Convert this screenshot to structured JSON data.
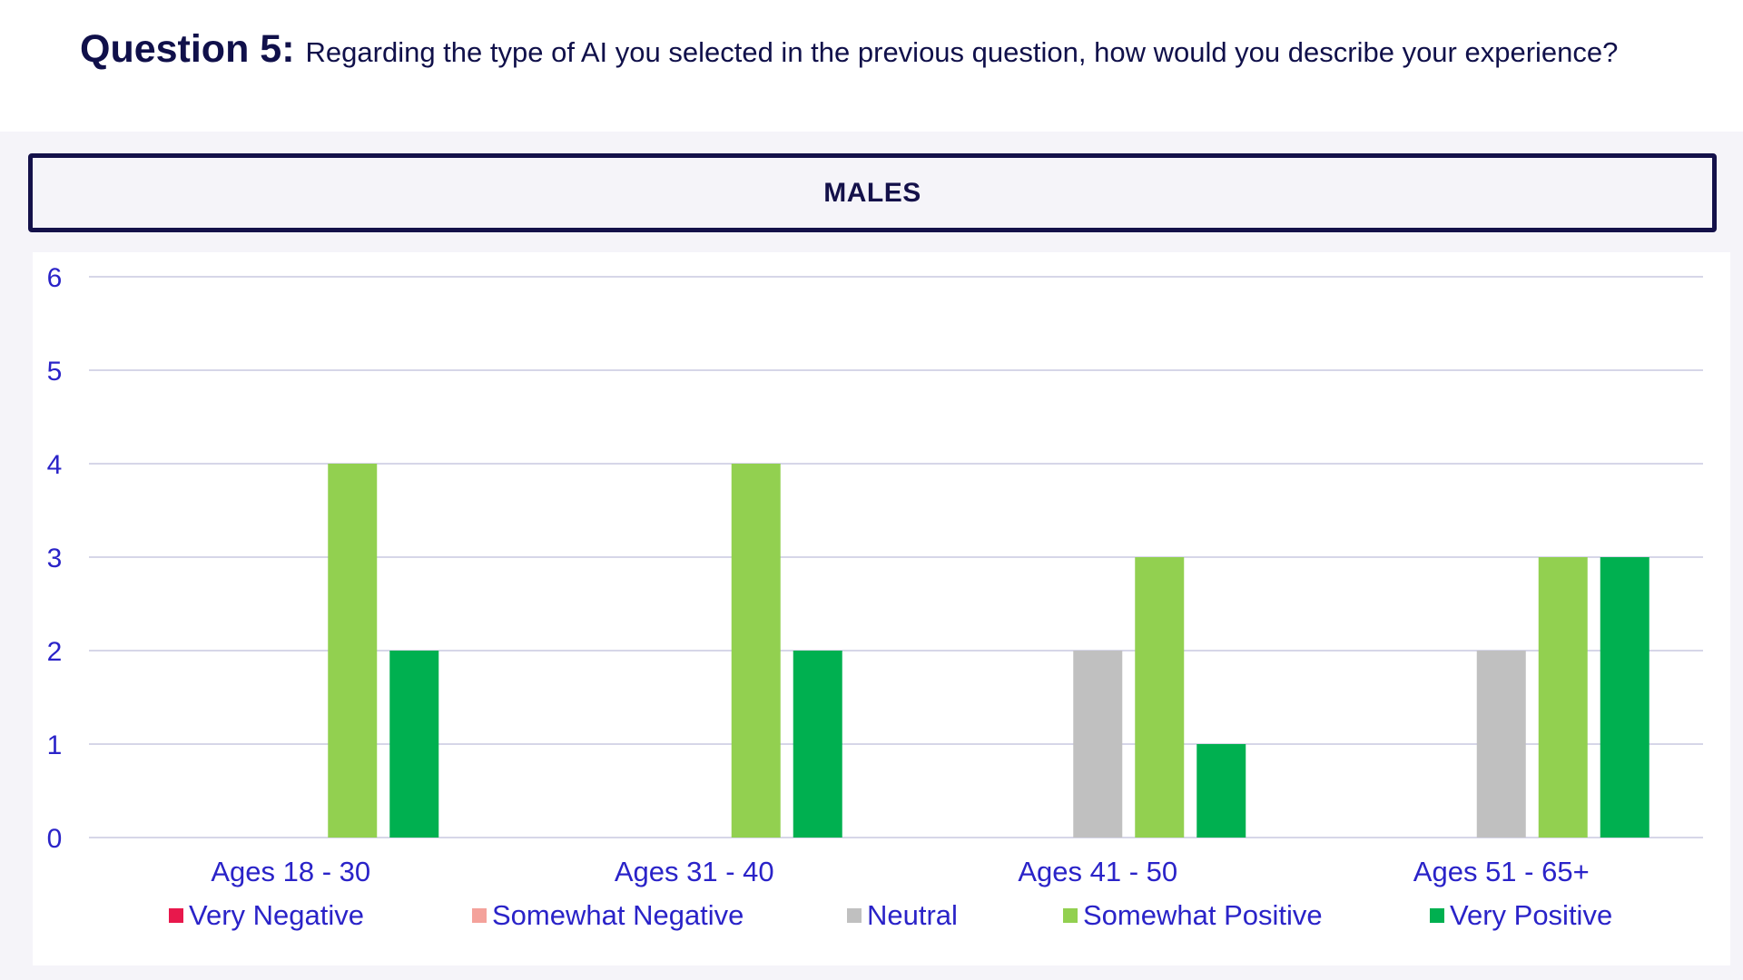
{
  "question": {
    "label": "Question 5:",
    "text": "Regarding the type of AI you selected in the previous question, how would you describe your experience?"
  },
  "group": {
    "label": "MALES"
  },
  "colors": {
    "title": "#10104a",
    "axis_text": "#2a23c8",
    "gridline": "#c9c8e0",
    "banner_border": "#14114a",
    "panel_bg": "#f5f4f9"
  },
  "chart_data": {
    "type": "bar",
    "title": "",
    "xlabel": "",
    "ylabel": "",
    "ylim": [
      0,
      6
    ],
    "yticks": [
      0,
      1,
      2,
      3,
      4,
      5,
      6
    ],
    "grid": true,
    "legend_position": "bottom",
    "categories": [
      "Ages 18 - 30",
      "Ages 31 - 40",
      "Ages 41 - 50",
      "Ages 51 - 65+"
    ],
    "series": [
      {
        "name": "Very Negative",
        "color": "#e8184c",
        "values": [
          0,
          0,
          0,
          0
        ]
      },
      {
        "name": "Somewhat Negative",
        "color": "#f4a29b",
        "values": [
          0,
          0,
          0,
          0
        ]
      },
      {
        "name": "Neutral",
        "color": "#c0c0c0",
        "values": [
          0,
          0,
          2,
          2
        ]
      },
      {
        "name": "Somewhat Positive",
        "color": "#92d050",
        "values": [
          4,
          4,
          3,
          3
        ]
      },
      {
        "name": "Very Positive",
        "color": "#00b050",
        "values": [
          2,
          2,
          1,
          3
        ]
      }
    ]
  }
}
